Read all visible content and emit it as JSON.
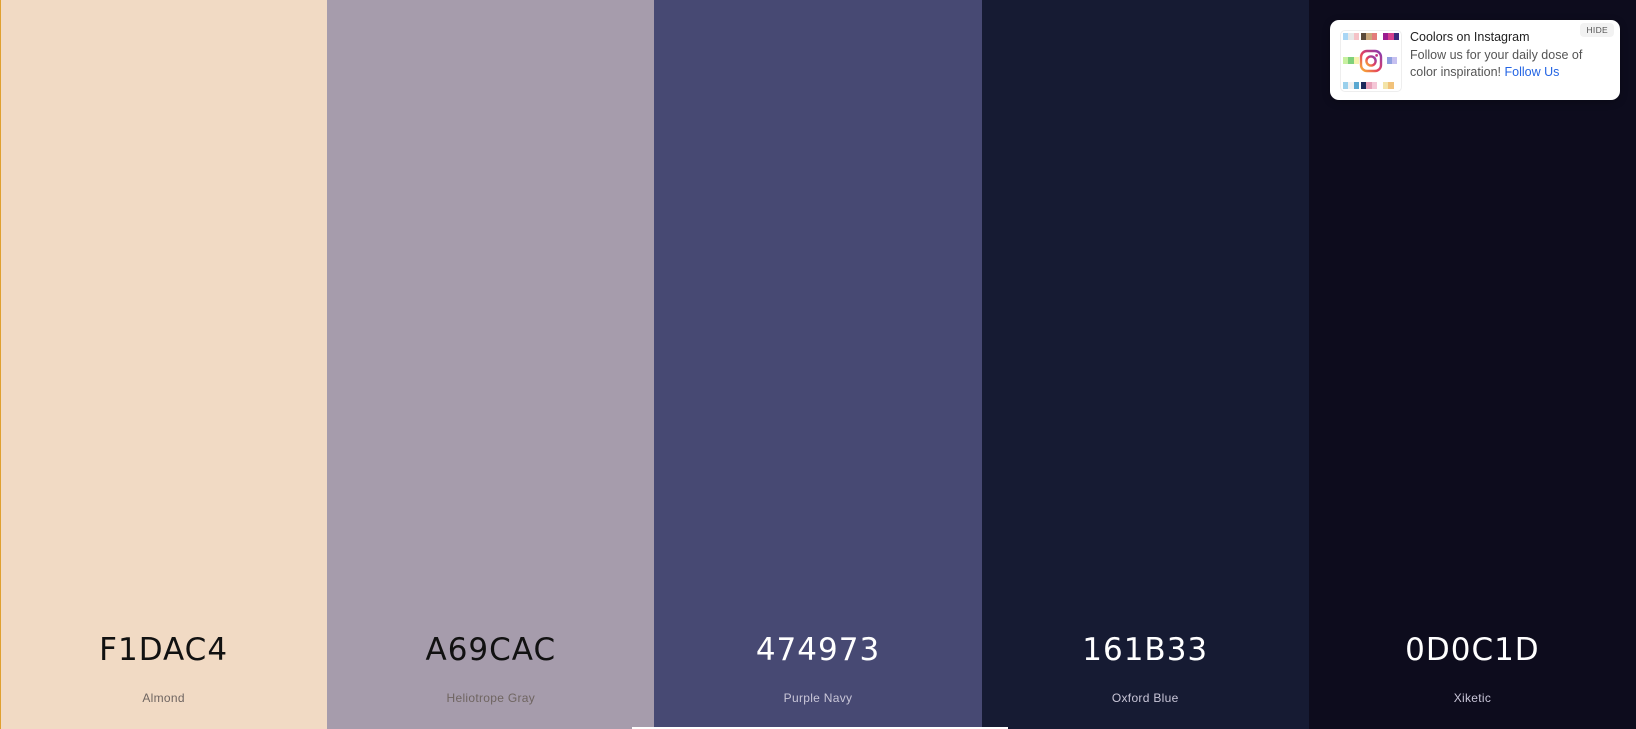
{
  "palette": [
    {
      "hex": "F1DAC4",
      "name": "Almond",
      "color": "#F1DAC4"
    },
    {
      "hex": "A69CAC",
      "name": "Heliotrope Gray",
      "color": "#A69CAC"
    },
    {
      "hex": "474973",
      "name": "Purple Navy",
      "color": "#474973"
    },
    {
      "hex": "161B33",
      "name": "Oxford Blue",
      "color": "#161B33"
    },
    {
      "hex": "0D0C1D",
      "name": "Xiketic",
      "color": "#0D0C1D"
    }
  ],
  "toast": {
    "title": "Coolors on Instagram",
    "body": "Follow us for your daily dose of color inspiration!",
    "link": "Follow Us",
    "hide": "HIDE",
    "icon": "instagram-icon"
  }
}
